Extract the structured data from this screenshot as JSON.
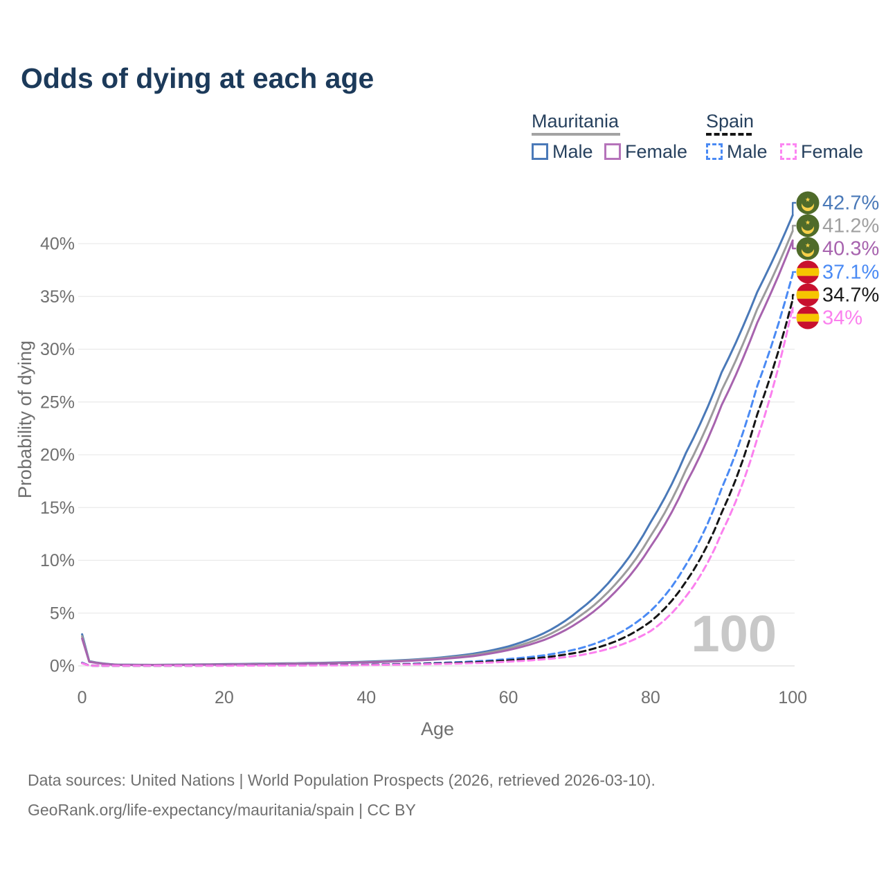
{
  "page": {
    "title": "Odds of dying at each age"
  },
  "legend": {
    "groups": [
      {
        "label": "Mauritania",
        "line_style": "solid",
        "underline_color": "#a3a3a3",
        "items": [
          {
            "label": "Male",
            "color": "#4a79b8"
          },
          {
            "label": "Female",
            "color": "#b573ba"
          }
        ]
      },
      {
        "label": "Spain",
        "line_style": "dashed",
        "underline_color": "#151515",
        "items": [
          {
            "label": "Male",
            "color": "#4a8af4"
          },
          {
            "label": "Female",
            "color": "#fc86f2"
          }
        ]
      }
    ]
  },
  "chart_data": {
    "type": "line",
    "title": "Odds of dying at each age",
    "xlabel": "Age",
    "ylabel": "Probability of dying",
    "xlim": [
      0,
      100
    ],
    "ylim": [
      0,
      44
    ],
    "x_ticks": [
      0,
      20,
      40,
      60,
      80,
      100
    ],
    "y_ticks": [
      0,
      5,
      10,
      15,
      20,
      25,
      30,
      35,
      40
    ],
    "y_tick_suffix": "%",
    "grid": "horizontal",
    "legend_position": "top-right",
    "watermark": "100",
    "ages": [
      0,
      1,
      5,
      10,
      15,
      20,
      25,
      30,
      35,
      40,
      45,
      50,
      55,
      60,
      65,
      70,
      75,
      80,
      85,
      90,
      95,
      100
    ],
    "series": [
      {
        "name": "Mauritania Male",
        "flag": "mauritania",
        "style": "solid",
        "color": "#4a79b8",
        "end_label": "42.7%",
        "label_color": "#4a79b8",
        "values": [
          3.0,
          0.45,
          0.12,
          0.1,
          0.13,
          0.17,
          0.21,
          0.25,
          0.31,
          0.4,
          0.54,
          0.76,
          1.15,
          1.85,
          3.1,
          5.3,
          8.6,
          13.6,
          20.2,
          27.8,
          35.4,
          42.7
        ]
      },
      {
        "name": "Mauritania Both sexes",
        "flag": "mauritania",
        "style": "solid",
        "color": "#9c9c9c",
        "end_label": "41.2%",
        "label_color": "#a0a0a0",
        "values": [
          2.8,
          0.42,
          0.11,
          0.09,
          0.12,
          0.15,
          0.19,
          0.23,
          0.28,
          0.36,
          0.49,
          0.69,
          1.03,
          1.65,
          2.75,
          4.7,
          7.7,
          12.3,
          18.6,
          26.1,
          33.8,
          41.2
        ]
      },
      {
        "name": "Mauritania Female",
        "flag": "mauritania",
        "style": "solid",
        "color": "#a763ae",
        "end_label": "40.3%",
        "label_color": "#a763ae",
        "values": [
          2.6,
          0.39,
          0.1,
          0.08,
          0.1,
          0.13,
          0.16,
          0.2,
          0.26,
          0.33,
          0.44,
          0.62,
          0.92,
          1.5,
          2.45,
          4.2,
          7.0,
          11.3,
          17.3,
          24.7,
          32.5,
          40.3
        ]
      },
      {
        "name": "Spain Male",
        "flag": "spain",
        "style": "dashed",
        "color": "#4a8af4",
        "end_label": "37.1%",
        "label_color": "#4a8af4",
        "values": [
          0.3,
          0.03,
          0.01,
          0.01,
          0.02,
          0.04,
          0.05,
          0.06,
          0.08,
          0.12,
          0.18,
          0.28,
          0.42,
          0.65,
          1.0,
          1.65,
          2.9,
          5.2,
          9.6,
          16.8,
          26.5,
          37.1
        ]
      },
      {
        "name": "Spain Both sexes",
        "flag": "spain",
        "style": "dashed",
        "color": "#151515",
        "end_label": "34.7%",
        "label_color": "#1a1a1a",
        "values": [
          0.27,
          0.03,
          0.01,
          0.01,
          0.02,
          0.03,
          0.04,
          0.05,
          0.07,
          0.1,
          0.15,
          0.23,
          0.34,
          0.52,
          0.8,
          1.3,
          2.3,
          4.2,
          8.0,
          14.5,
          23.8,
          34.7
        ]
      },
      {
        "name": "Spain Female",
        "flag": "spain",
        "style": "dashed",
        "color": "#fb80ee",
        "end_label": "34%",
        "label_color": "#fb80ee",
        "values": [
          0.25,
          0.02,
          0.01,
          0.01,
          0.01,
          0.02,
          0.03,
          0.04,
          0.05,
          0.08,
          0.12,
          0.18,
          0.26,
          0.4,
          0.62,
          1.0,
          1.8,
          3.3,
          6.6,
          12.6,
          21.5,
          34.0
        ]
      }
    ],
    "flag_colors": {
      "mauritania": {
        "field": "#4f6b2a",
        "emblem": "#f7d04a"
      },
      "spain": {
        "red": "#c8102e",
        "yellow": "#f6c500"
      }
    }
  },
  "footer": {
    "line1": "Data sources: United Nations | World Population Prospects (2026, retrieved 2026-03-10).",
    "line2": "GeoRank.org/life-expectancy/mauritania/spain | CC BY"
  }
}
